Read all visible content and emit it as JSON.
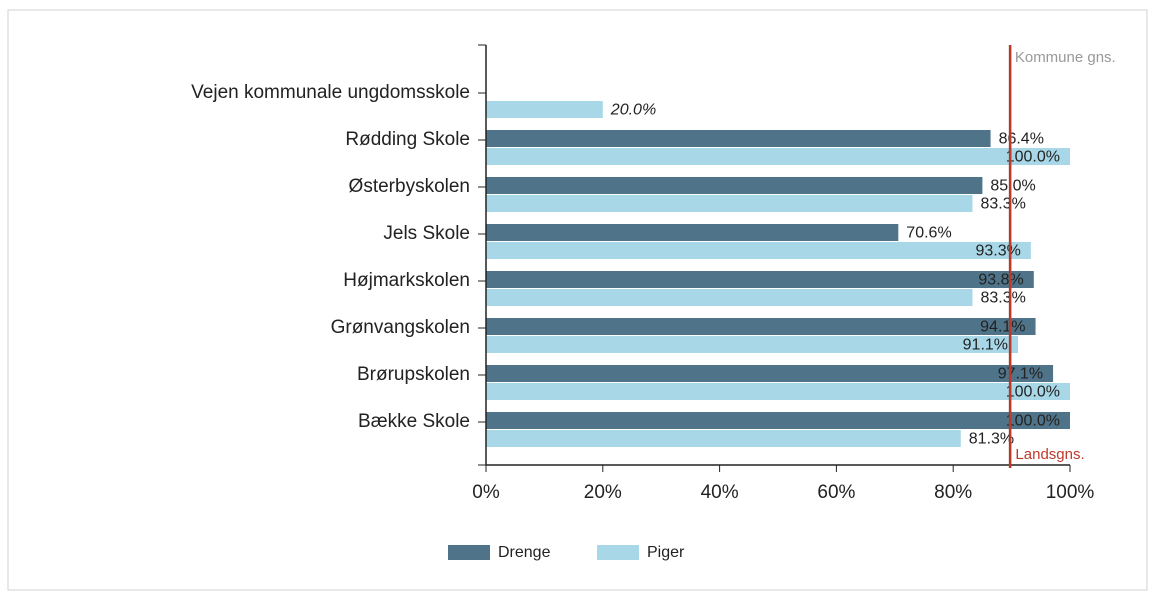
{
  "chart_data": {
    "type": "hbar",
    "categories": [
      "Vejen kommunale ungdomsskole",
      "Rødding Skole",
      "Østerbyskolen",
      "Jels Skole",
      "Højmarkskolen",
      "Grønvangskolen",
      "Brørupskolen",
      "Bække Skole"
    ],
    "series": [
      {
        "name": "Drenge",
        "color": "#4f7389",
        "values": [
          null,
          86.4,
          85.0,
          70.6,
          93.8,
          94.1,
          97.1,
          100.0
        ],
        "value_labels": [
          null,
          "86.4%",
          "85.0%",
          "70.6%",
          "93.8%",
          "94.1%",
          "97.1%",
          "100.0%"
        ]
      },
      {
        "name": "Piger",
        "color": "#a8d8e8",
        "values": [
          20.0,
          100.0,
          83.3,
          93.3,
          83.3,
          91.1,
          100.0,
          81.3
        ],
        "value_labels": [
          "20.0%",
          "100.0%",
          "83.3%",
          "93.3%",
          "83.3%",
          "91.1%",
          "100.0%",
          "81.3%"
        ]
      }
    ],
    "xlim": [
      0,
      100
    ],
    "xticks": [
      {
        "value": 0,
        "label": "0%"
      },
      {
        "value": 20,
        "label": "20%"
      },
      {
        "value": 40,
        "label": "40%"
      },
      {
        "value": 60,
        "label": "60%"
      },
      {
        "value": 80,
        "label": "80%"
      },
      {
        "value": 100,
        "label": "100%"
      }
    ],
    "reference_lines": [
      {
        "label": "Kommune gns.",
        "value": 89.7,
        "color": "#8b4513",
        "label_color": "#999999"
      },
      {
        "label": "Landsgns.",
        "value": 89.8,
        "color": "#c0392b",
        "label_color": "#c0392b"
      }
    ]
  }
}
